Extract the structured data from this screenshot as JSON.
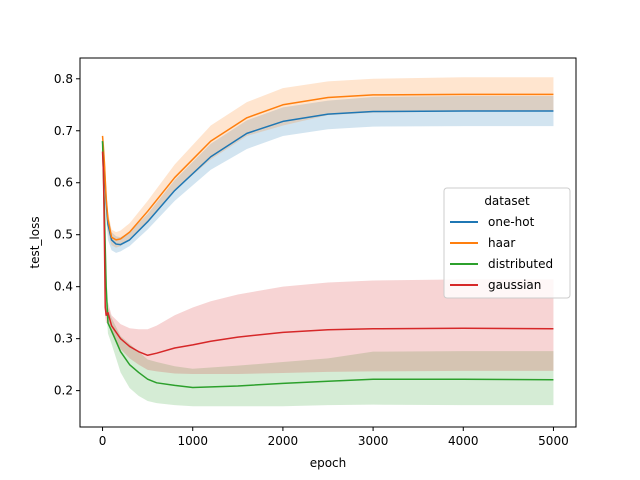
{
  "chart_data": {
    "type": "line",
    "title": "",
    "xlabel": "epoch",
    "ylabel": "test_loss",
    "xlim": [
      -250,
      5250
    ],
    "ylim": [
      0.13,
      0.84
    ],
    "xticks": [
      0,
      1000,
      2000,
      3000,
      4000,
      5000
    ],
    "yticks": [
      0.2,
      0.3,
      0.4,
      0.5,
      0.6,
      0.7,
      0.8
    ],
    "grid": false,
    "legend": {
      "title": "dataset",
      "position": "center-right"
    },
    "series": [
      {
        "name": "one-hot",
        "color": "#1f77b4",
        "x": [
          0,
          20,
          40,
          60,
          100,
          150,
          200,
          300,
          500,
          800,
          1200,
          1600,
          2000,
          2500,
          3000,
          4000,
          5000
        ],
        "mean": [
          0.68,
          0.63,
          0.56,
          0.52,
          0.49,
          0.482,
          0.481,
          0.49,
          0.525,
          0.585,
          0.65,
          0.695,
          0.718,
          0.732,
          0.737,
          0.738,
          0.738
        ],
        "lower": [
          0.66,
          0.6,
          0.53,
          0.49,
          0.47,
          0.465,
          0.468,
          0.478,
          0.51,
          0.565,
          0.625,
          0.665,
          0.69,
          0.703,
          0.708,
          0.709,
          0.709
        ],
        "upper": [
          0.69,
          0.66,
          0.59,
          0.54,
          0.505,
          0.497,
          0.495,
          0.505,
          0.54,
          0.605,
          0.675,
          0.72,
          0.745,
          0.758,
          0.765,
          0.767,
          0.767
        ]
      },
      {
        "name": "haar",
        "color": "#ff7f0e",
        "x": [
          0,
          20,
          40,
          60,
          100,
          150,
          200,
          300,
          500,
          800,
          1200,
          1600,
          2000,
          2500,
          3000,
          4000,
          5000
        ],
        "mean": [
          0.69,
          0.64,
          0.57,
          0.53,
          0.495,
          0.49,
          0.492,
          0.505,
          0.545,
          0.61,
          0.68,
          0.725,
          0.75,
          0.764,
          0.769,
          0.77,
          0.77
        ],
        "lower": [
          0.67,
          0.61,
          0.54,
          0.505,
          0.48,
          0.475,
          0.478,
          0.49,
          0.525,
          0.585,
          0.645,
          0.69,
          0.71,
          0.73,
          0.735,
          0.737,
          0.737
        ],
        "upper": [
          0.695,
          0.67,
          0.6,
          0.545,
          0.51,
          0.505,
          0.508,
          0.522,
          0.565,
          0.635,
          0.71,
          0.755,
          0.782,
          0.795,
          0.8,
          0.803,
          0.803
        ]
      },
      {
        "name": "distributed",
        "color": "#2ca02c",
        "x": [
          0,
          20,
          40,
          60,
          100,
          200,
          300,
          400,
          500,
          600,
          800,
          1000,
          1500,
          2000,
          2500,
          3000,
          4000,
          5000
        ],
        "mean": [
          0.68,
          0.55,
          0.4,
          0.33,
          0.315,
          0.275,
          0.25,
          0.235,
          0.222,
          0.215,
          0.21,
          0.206,
          0.209,
          0.214,
          0.218,
          0.222,
          0.222,
          0.221
        ],
        "lower": [
          0.66,
          0.5,
          0.36,
          0.31,
          0.29,
          0.235,
          0.205,
          0.19,
          0.18,
          0.176,
          0.172,
          0.17,
          0.17,
          0.17,
          0.172,
          0.173,
          0.172,
          0.172
        ],
        "upper": [
          0.69,
          0.6,
          0.44,
          0.36,
          0.34,
          0.305,
          0.29,
          0.275,
          0.26,
          0.255,
          0.247,
          0.242,
          0.248,
          0.255,
          0.262,
          0.275,
          0.276,
          0.276
        ]
      },
      {
        "name": "gaussian",
        "color": "#d62728",
        "x": [
          0,
          10,
          20,
          30,
          40,
          60,
          100,
          200,
          300,
          400,
          500,
          600,
          800,
          1000,
          1200,
          1500,
          2000,
          2500,
          3000,
          4000,
          5000
        ],
        "mean": [
          0.66,
          0.62,
          0.5,
          0.36,
          0.345,
          0.35,
          0.325,
          0.3,
          0.285,
          0.275,
          0.268,
          0.272,
          0.282,
          0.288,
          0.295,
          0.303,
          0.312,
          0.317,
          0.319,
          0.32,
          0.319
        ],
        "lower": [
          0.64,
          0.59,
          0.44,
          0.34,
          0.33,
          0.33,
          0.31,
          0.28,
          0.262,
          0.25,
          0.24,
          0.237,
          0.233,
          0.232,
          0.232,
          0.232,
          0.234,
          0.236,
          0.237,
          0.238,
          0.238
        ],
        "upper": [
          0.68,
          0.66,
          0.56,
          0.39,
          0.365,
          0.37,
          0.345,
          0.328,
          0.32,
          0.318,
          0.318,
          0.325,
          0.345,
          0.36,
          0.372,
          0.385,
          0.4,
          0.408,
          0.412,
          0.414,
          0.414
        ]
      }
    ]
  }
}
